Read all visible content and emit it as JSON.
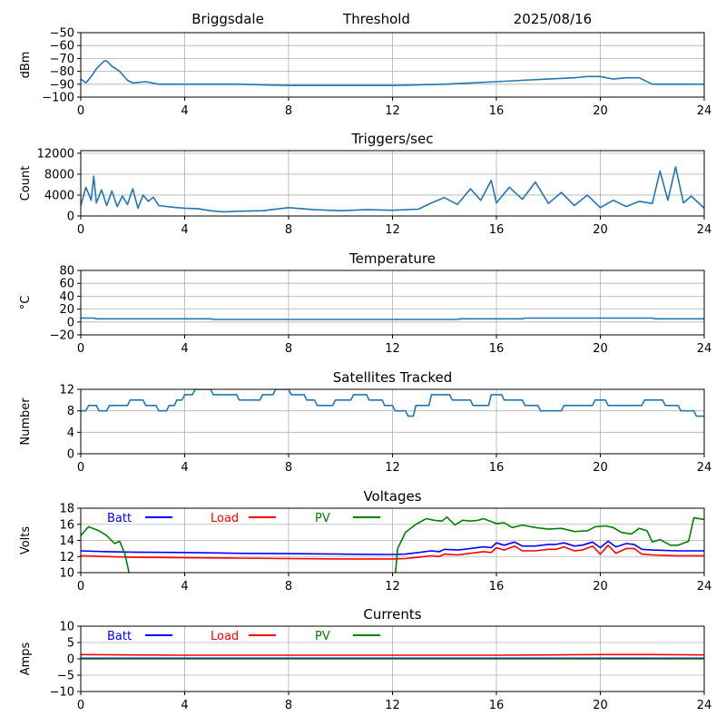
{
  "header": {
    "station": "Briggsdale",
    "mode": "Threshold",
    "date": "2025/08/16"
  },
  "colors": {
    "series": "#1f77b4",
    "batt": "#0000ff",
    "load": "#ff0000",
    "pv": "#008000",
    "grid": "#b0b0b0"
  },
  "chart_data": [
    {
      "id": "threshold",
      "type": "line",
      "title": "",
      "ylabel": "dBm",
      "xlim": [
        0,
        24
      ],
      "ylim": [
        -100,
        -50
      ],
      "xticks": [
        0,
        4,
        8,
        12,
        16,
        20,
        24
      ],
      "yticks": [
        -100,
        -90,
        -80,
        -70,
        -60,
        -50
      ],
      "grid": true,
      "series": [
        {
          "x": [
            0,
            0.2,
            0.4,
            0.6,
            0.8,
            0.9,
            1.0,
            1.2,
            1.5,
            1.8,
            2.0,
            2.5,
            3,
            4,
            6,
            8,
            10,
            12,
            14,
            15,
            16,
            17,
            18,
            19,
            19.5,
            20,
            20.5,
            21,
            21.5,
            22,
            23,
            24
          ],
          "y": [
            -86,
            -89,
            -84,
            -78,
            -74,
            -72,
            -72,
            -76,
            -80,
            -87,
            -89,
            -88,
            -90,
            -90,
            -90,
            -91,
            -91,
            -91,
            -90,
            -89,
            -88,
            -87,
            -86,
            -85,
            -84,
            -84,
            -86,
            -85,
            -85,
            -90,
            -90,
            -90
          ]
        }
      ]
    },
    {
      "id": "triggers",
      "type": "line",
      "title": "Triggers/sec",
      "ylabel": "Count",
      "xlim": [
        0,
        24
      ],
      "ylim": [
        0,
        12500
      ],
      "xticks": [
        0,
        4,
        8,
        12,
        16,
        20,
        24
      ],
      "yticks": [
        0,
        4000,
        8000,
        12000
      ],
      "grid": true,
      "series": [
        {
          "x": [
            0,
            0.2,
            0.4,
            0.5,
            0.6,
            0.8,
            1.0,
            1.2,
            1.4,
            1.6,
            1.8,
            2.0,
            2.2,
            2.4,
            2.6,
            2.8,
            3.0,
            3.5,
            4.0,
            4.5,
            5.0,
            5.5,
            6.0,
            7.0,
            8.0,
            9.0,
            10.0,
            11.0,
            12.0,
            13.0,
            13.5,
            14.0,
            14.5,
            15.0,
            15.4,
            15.8,
            16.0,
            16.5,
            17.0,
            17.5,
            18.0,
            18.5,
            19.0,
            19.5,
            20.0,
            20.5,
            21.0,
            21.5,
            22.0,
            22.3,
            22.6,
            22.9,
            23.2,
            23.5,
            24.0
          ],
          "y": [
            2000,
            5500,
            3000,
            7600,
            2500,
            5000,
            2000,
            4800,
            1800,
            3800,
            2200,
            5200,
            1500,
            4000,
            2800,
            3600,
            2000,
            1700,
            1500,
            1400,
            1000,
            800,
            900,
            1000,
            1600,
            1200,
            1000,
            1200,
            1100,
            1300,
            2500,
            3500,
            2200,
            5200,
            3000,
            6800,
            2500,
            5500,
            3200,
            6500,
            2400,
            4500,
            2000,
            4000,
            1600,
            3000,
            1800,
            2800,
            2400,
            8600,
            3000,
            9400,
            2500,
            3800,
            1500
          ]
        }
      ]
    },
    {
      "id": "temperature",
      "type": "line",
      "title": "Temperature",
      "ylabel": "°C",
      "xlim": [
        0,
        24
      ],
      "ylim": [
        -20,
        80
      ],
      "xticks": [
        0,
        4,
        8,
        12,
        16,
        20,
        24
      ],
      "yticks": [
        -20,
        0,
        20,
        40,
        60,
        80
      ],
      "grid": true,
      "series": [
        {
          "x": [
            0,
            0.5,
            0.6,
            5,
            5.1,
            14.5,
            14.6,
            17,
            17.1,
            22,
            22.1,
            24
          ],
          "y": [
            6,
            6,
            5,
            5,
            4,
            4,
            5,
            5,
            6,
            6,
            5,
            5
          ]
        }
      ]
    },
    {
      "id": "satellites",
      "type": "line",
      "title": "Satellites Tracked",
      "ylabel": "Number",
      "xlim": [
        0,
        24
      ],
      "ylim": [
        0,
        12
      ],
      "xticks": [
        0,
        4,
        8,
        12,
        16,
        20,
        24
      ],
      "yticks": [
        0,
        4,
        8,
        12
      ],
      "grid": true,
      "series": [
        {
          "x": [
            0,
            0.2,
            0.3,
            0.6,
            0.7,
            1.0,
            1.1,
            1.8,
            1.9,
            2.4,
            2.5,
            2.9,
            3.0,
            3.3,
            3.4,
            3.6,
            3.7,
            3.9,
            4.0,
            4.3,
            4.4,
            5.0,
            5.1,
            6.0,
            6.1,
            6.9,
            7.0,
            7.4,
            7.5,
            8.0,
            8.1,
            8.6,
            8.7,
            9.0,
            9.1,
            9.7,
            9.8,
            10.4,
            10.5,
            11.0,
            11.1,
            11.6,
            11.7,
            12.0,
            12.1,
            12.5,
            12.6,
            12.8,
            12.9,
            13.4,
            13.5,
            14.2,
            14.3,
            15.0,
            15.1,
            15.7,
            15.8,
            16.2,
            16.3,
            17.0,
            17.1,
            17.6,
            17.7,
            18.5,
            18.6,
            19.7,
            19.8,
            20.2,
            20.3,
            21.6,
            21.7,
            22.4,
            22.5,
            23.0,
            23.1,
            23.6,
            23.7,
            24.0
          ],
          "y": [
            8,
            8,
            9,
            9,
            8,
            8,
            9,
            9,
            10,
            10,
            9,
            9,
            8,
            8,
            9,
            9,
            10,
            10,
            11,
            11,
            12,
            12,
            11,
            11,
            10,
            10,
            11,
            11,
            12,
            12,
            11,
            11,
            10,
            10,
            9,
            9,
            10,
            10,
            11,
            11,
            10,
            10,
            9,
            9,
            8,
            8,
            7,
            7,
            9,
            9,
            11,
            11,
            10,
            10,
            9,
            9,
            11,
            11,
            10,
            10,
            9,
            9,
            8,
            8,
            9,
            9,
            10,
            10,
            9,
            9,
            10,
            10,
            9,
            9,
            8,
            8,
            7,
            7
          ]
        }
      ]
    },
    {
      "id": "voltages",
      "type": "line",
      "title": "Voltages",
      "ylabel": "Volts",
      "xlim": [
        0,
        24
      ],
      "ylim": [
        10,
        18
      ],
      "xticks": [
        0,
        4,
        8,
        12,
        16,
        20,
        24
      ],
      "yticks": [
        10,
        12,
        14,
        16,
        18
      ],
      "grid": true,
      "legend": "top-left",
      "series": [
        {
          "name": "Batt",
          "color_key": "batt",
          "x": [
            0,
            1,
            2,
            4,
            6,
            8,
            10,
            12,
            12.5,
            13,
            13.5,
            13.8,
            14,
            14.5,
            15,
            15.5,
            15.8,
            16,
            16.3,
            16.7,
            17,
            17.5,
            18,
            18.3,
            18.6,
            19,
            19.3,
            19.7,
            20,
            20.3,
            20.6,
            21,
            21.3,
            21.6,
            22,
            23,
            23.5,
            24
          ],
          "y": [
            12.7,
            12.6,
            12.55,
            12.5,
            12.4,
            12.35,
            12.3,
            12.25,
            12.3,
            12.5,
            12.7,
            12.6,
            12.9,
            12.8,
            13.0,
            13.2,
            13.1,
            13.7,
            13.4,
            13.8,
            13.3,
            13.3,
            13.5,
            13.5,
            13.7,
            13.3,
            13.4,
            13.8,
            13.1,
            13.9,
            13.2,
            13.6,
            13.5,
            12.9,
            12.8,
            12.7,
            12.7,
            12.7
          ]
        },
        {
          "name": "Load",
          "color_key": "load",
          "x": [
            0,
            1,
            2,
            4,
            6,
            8,
            10,
            12,
            12.5,
            13,
            13.5,
            13.8,
            14,
            14.5,
            15,
            15.5,
            15.8,
            16,
            16.3,
            16.7,
            17,
            17.5,
            18,
            18.3,
            18.6,
            19,
            19.3,
            19.7,
            20,
            20.3,
            20.6,
            21,
            21.3,
            21.6,
            22,
            23,
            23.5,
            24
          ],
          "y": [
            12.1,
            12.0,
            11.9,
            11.85,
            11.8,
            11.75,
            11.7,
            11.7,
            11.75,
            11.9,
            12.1,
            12.0,
            12.3,
            12.2,
            12.4,
            12.6,
            12.5,
            13.1,
            12.8,
            13.3,
            12.7,
            12.7,
            12.9,
            12.9,
            13.2,
            12.7,
            12.8,
            13.3,
            12.3,
            13.4,
            12.4,
            13.0,
            13.0,
            12.3,
            12.2,
            12.1,
            12.1,
            12.1
          ]
        },
        {
          "name": "PV",
          "color_key": "pv",
          "x": [
            0,
            0.3,
            0.7,
            1.0,
            1.3,
            1.5,
            1.7,
            1.85,
            1.9,
            12.1,
            12.2,
            12.5,
            12.9,
            13.3,
            13.6,
            13.9,
            14.1,
            14.4,
            14.7,
            15.0,
            15.3,
            15.5,
            16.0,
            16.3,
            16.6,
            17.0,
            17.5,
            18.0,
            18.5,
            19.0,
            19.5,
            19.8,
            20.2,
            20.5,
            20.8,
            21.2,
            21.5,
            21.8,
            22.0,
            22.3,
            22.7,
            23.0,
            23.4,
            23.6,
            24.0
          ],
          "y": [
            14.6,
            15.7,
            15.2,
            14.6,
            13.6,
            13.9,
            12.3,
            10.1,
            9.5,
            9.5,
            13.0,
            15.0,
            16.0,
            16.7,
            16.5,
            16.4,
            16.9,
            15.9,
            16.5,
            16.4,
            16.5,
            16.7,
            16.1,
            16.2,
            15.6,
            15.9,
            15.6,
            15.4,
            15.5,
            15.1,
            15.2,
            15.7,
            15.8,
            15.6,
            15.0,
            14.8,
            15.5,
            15.2,
            13.8,
            14.1,
            13.4,
            13.4,
            13.9,
            16.8,
            16.6
          ]
        }
      ]
    },
    {
      "id": "currents",
      "type": "line",
      "title": "Currents",
      "ylabel": "Amps",
      "xlim": [
        0,
        24
      ],
      "ylim": [
        -10,
        10
      ],
      "xticks": [
        0,
        4,
        8,
        12,
        16,
        20,
        24
      ],
      "yticks": [
        -10,
        -5,
        0,
        5,
        10
      ],
      "grid": true,
      "legend": "top-left",
      "series": [
        {
          "name": "Batt",
          "color_key": "batt",
          "x": [
            0,
            24
          ],
          "y": [
            0.2,
            0.2
          ]
        },
        {
          "name": "Load",
          "color_key": "load",
          "x": [
            0,
            2,
            4,
            8,
            12,
            16,
            18,
            20,
            22,
            24
          ],
          "y": [
            1.3,
            1.2,
            1.1,
            1.1,
            1.1,
            1.1,
            1.2,
            1.3,
            1.3,
            1.2
          ]
        },
        {
          "name": "PV",
          "color_key": "pv",
          "x": [
            0,
            24
          ],
          "y": [
            0,
            0
          ]
        }
      ]
    }
  ]
}
